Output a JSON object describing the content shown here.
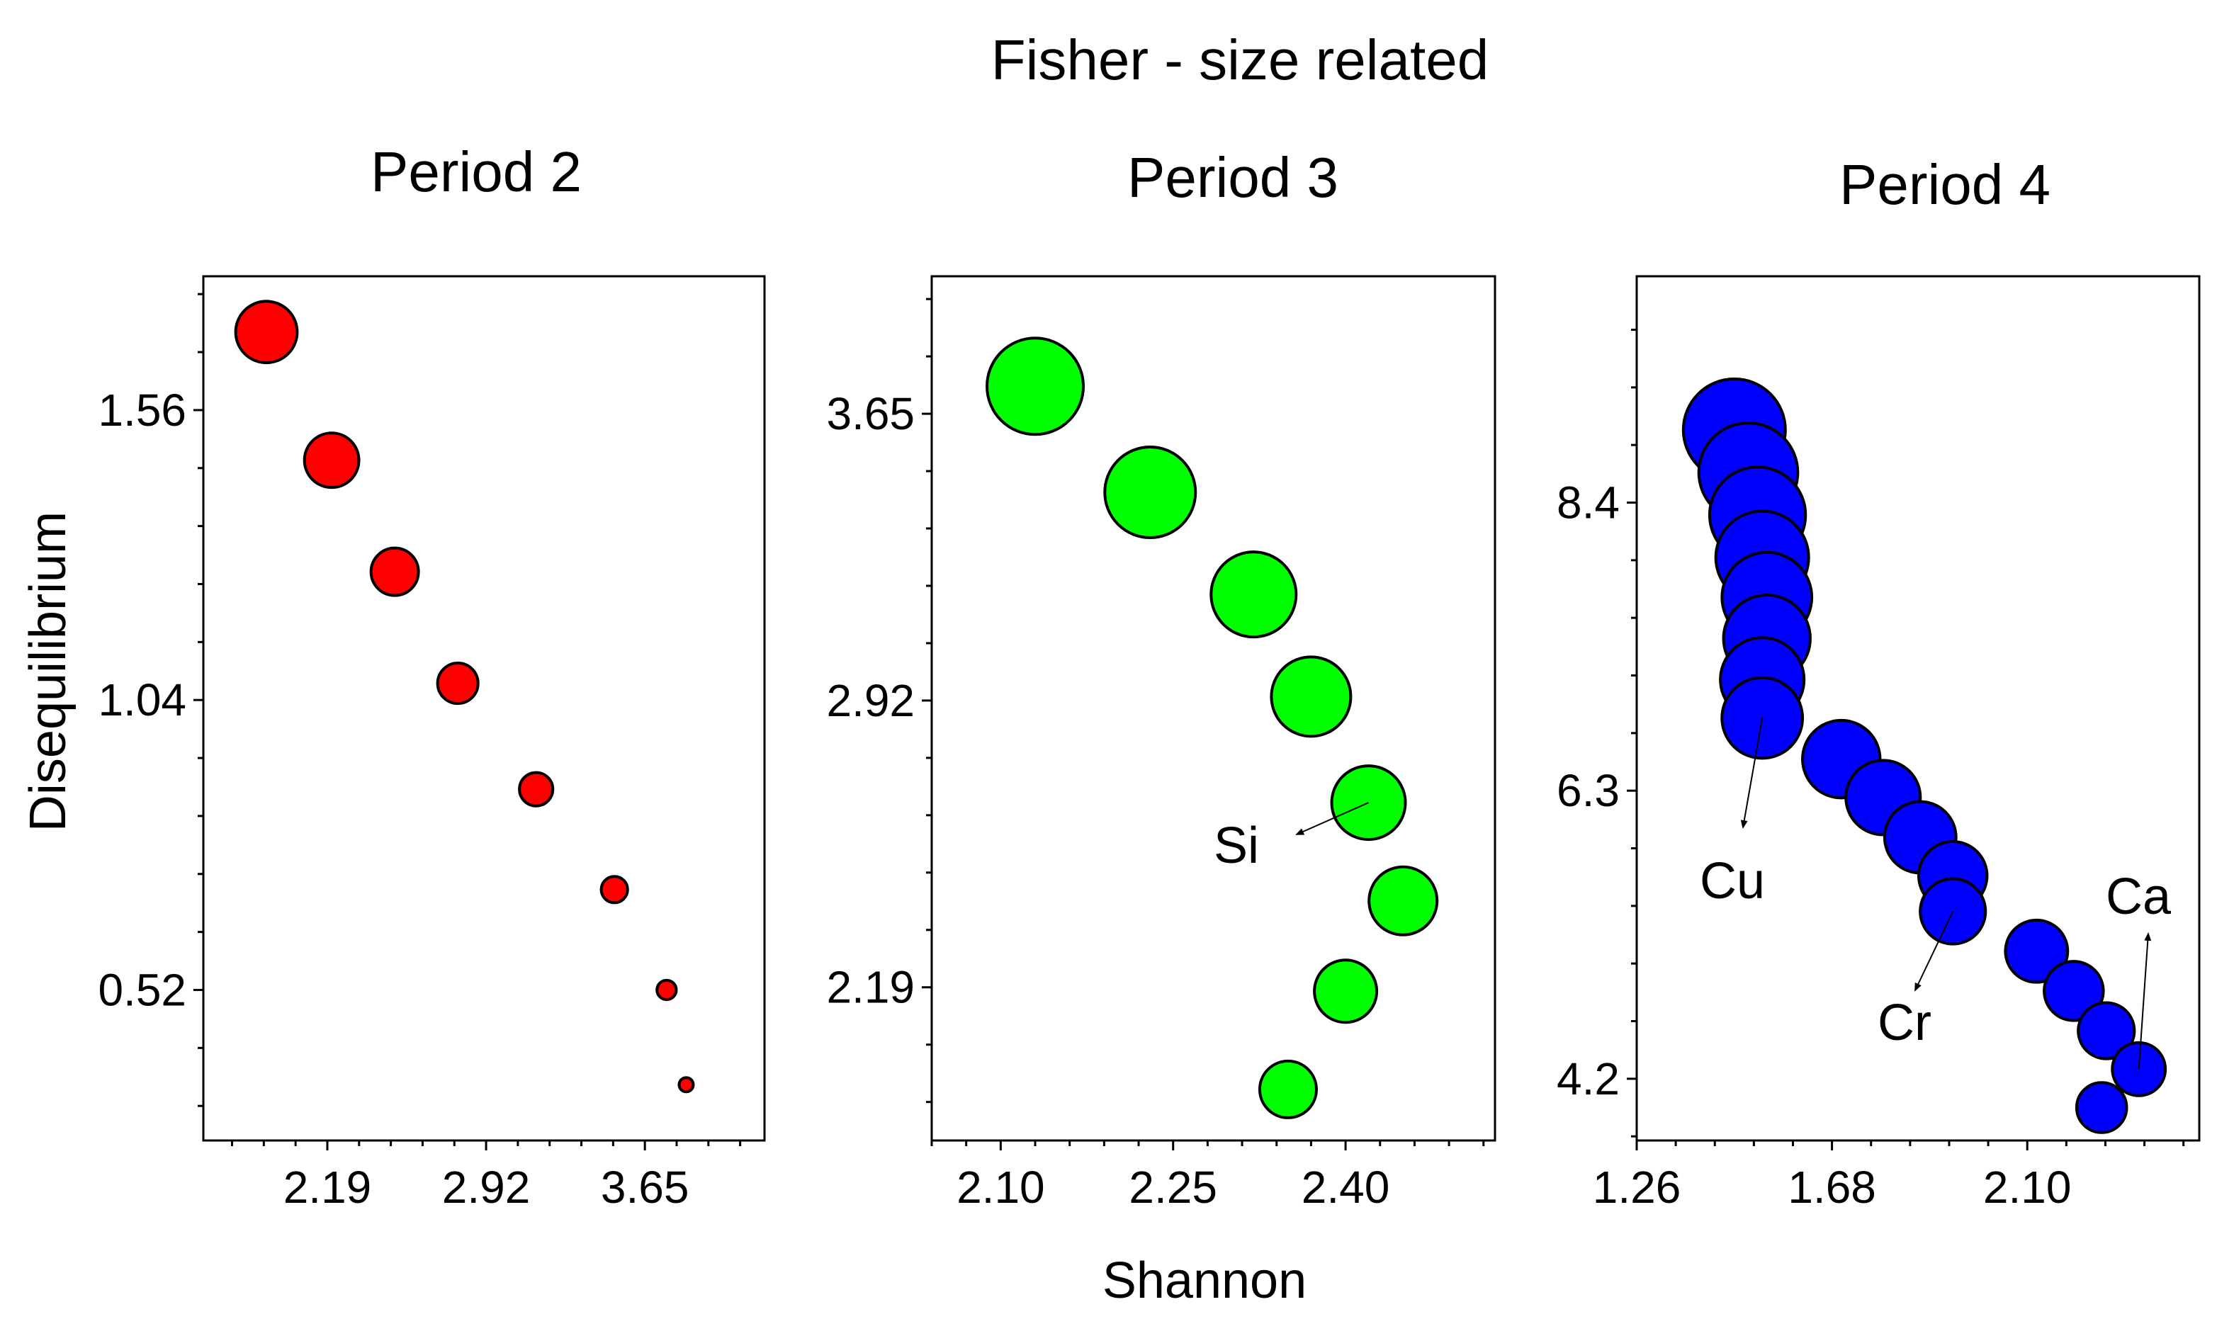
{
  "chart_data": {
    "title": "Fisher - size related",
    "xlabel": "Shannon",
    "ylabel": "Disequilibrium",
    "panels": [
      {
        "title": "Period 2",
        "type": "scatter",
        "color": "#ff0000",
        "xlim": [
          1.62,
          4.2
        ],
        "ylim": [
          0.25,
          1.8
        ],
        "xticks": [
          "2.19",
          "2.92",
          "3.65"
        ],
        "yticks": [
          "0.52",
          "1.04",
          "1.56"
        ],
        "points": [
          {
            "x": 1.91,
            "y": 1.7,
            "size": 0.7
          },
          {
            "x": 2.21,
            "y": 1.47,
            "size": 0.62
          },
          {
            "x": 2.5,
            "y": 1.27,
            "size": 0.54
          },
          {
            "x": 2.79,
            "y": 1.07,
            "size": 0.46
          },
          {
            "x": 3.15,
            "y": 0.88,
            "size": 0.38
          },
          {
            "x": 3.51,
            "y": 0.7,
            "size": 0.3
          },
          {
            "x": 3.75,
            "y": 0.52,
            "size": 0.22
          },
          {
            "x": 3.84,
            "y": 0.35,
            "size": 0.14
          }
        ],
        "annotations": []
      },
      {
        "title": "Period 3",
        "type": "scatter",
        "color": "#00ff00",
        "xlim": [
          2.04,
          2.53
        ],
        "ylim": [
          1.8,
          4.0
        ],
        "xticks": [
          "2.10",
          "2.25",
          "2.40"
        ],
        "yticks": [
          "2.19",
          "2.92",
          "3.65"
        ],
        "points": [
          {
            "x": 2.13,
            "y": 3.72,
            "size": 0.85
          },
          {
            "x": 2.23,
            "y": 3.45,
            "size": 0.8
          },
          {
            "x": 2.32,
            "y": 3.19,
            "size": 0.75
          },
          {
            "x": 2.37,
            "y": 2.93,
            "size": 0.7
          },
          {
            "x": 2.42,
            "y": 2.66,
            "size": 0.65
          },
          {
            "x": 2.45,
            "y": 2.41,
            "size": 0.6
          },
          {
            "x": 2.4,
            "y": 2.18,
            "size": 0.55
          },
          {
            "x": 2.35,
            "y": 1.93,
            "size": 0.5
          }
        ],
        "annotations": [
          {
            "label": "Si",
            "x": 2.42,
            "y": 2.66
          }
        ]
      },
      {
        "title": "Period 4",
        "type": "scatter",
        "color": "#0000ff",
        "xlim": [
          1.26,
          2.47
        ],
        "ylim": [
          3.75,
          10.05
        ],
        "xticks": [
          "1.26",
          "1.68",
          "2.10"
        ],
        "yticks": [
          "4.2",
          "6.3",
          "8.4"
        ],
        "points": [
          {
            "x": 1.47,
            "y": 8.93,
            "size": 1.0
          },
          {
            "x": 1.5,
            "y": 8.62,
            "size": 0.97
          },
          {
            "x": 1.52,
            "y": 8.31,
            "size": 0.94
          },
          {
            "x": 1.53,
            "y": 8.0,
            "size": 0.91
          },
          {
            "x": 1.54,
            "y": 7.71,
            "size": 0.88
          },
          {
            "x": 1.54,
            "y": 7.41,
            "size": 0.85
          },
          {
            "x": 1.53,
            "y": 7.11,
            "size": 0.82
          },
          {
            "x": 1.53,
            "y": 6.83,
            "size": 0.79
          },
          {
            "x": 1.7,
            "y": 6.53,
            "size": 0.76
          },
          {
            "x": 1.79,
            "y": 6.25,
            "size": 0.73
          },
          {
            "x": 1.87,
            "y": 5.96,
            "size": 0.7
          },
          {
            "x": 1.94,
            "y": 5.68,
            "size": 0.67
          },
          {
            "x": 1.94,
            "y": 5.42,
            "size": 0.64
          },
          {
            "x": 2.12,
            "y": 5.13,
            "size": 0.61
          },
          {
            "x": 2.2,
            "y": 4.84,
            "size": 0.58
          },
          {
            "x": 2.27,
            "y": 4.55,
            "size": 0.55
          },
          {
            "x": 2.34,
            "y": 4.27,
            "size": 0.52
          },
          {
            "x": 2.26,
            "y": 3.99,
            "size": 0.49
          }
        ],
        "annotations": [
          {
            "label": "Cu",
            "x": 1.53,
            "y": 6.83
          },
          {
            "label": "Cr",
            "x": 1.94,
            "y": 5.42
          },
          {
            "label": "Ca",
            "x": 2.34,
            "y": 4.27
          }
        ]
      }
    ]
  }
}
